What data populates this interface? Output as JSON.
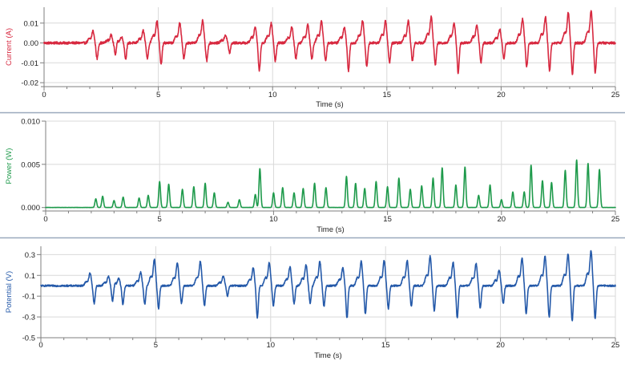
{
  "chart_data": [
    {
      "type": "line",
      "name": "current",
      "ylabel": "Current (A)",
      "xlabel": "Time (s)",
      "color": "#d7283f",
      "xlim": [
        0,
        25
      ],
      "ylim": [
        -0.022,
        0.018
      ],
      "yticks": [
        0.01,
        0.0,
        -0.01,
        -0.02
      ],
      "ytick_labels": [
        "0.01",
        "0.00",
        "-0.01",
        "-0.02"
      ],
      "xticks": [
        0,
        5,
        10,
        15,
        20,
        25
      ],
      "xtick_labels": [
        "0",
        "5",
        "10",
        "15",
        "20",
        "25"
      ],
      "baseline": 0.0,
      "noise": 0.0006,
      "pulse_times": [
        2.2,
        3.0,
        3.45,
        4.4,
        5.0,
        6.0,
        7.0,
        8.0,
        9.3,
        10.0,
        10.9,
        11.6,
        12.2,
        13.2,
        14.0,
        15.0,
        16.0,
        17.0,
        18.0,
        19.0,
        20.0,
        21.0,
        22.0,
        23.0,
        24.0
      ],
      "pulse_pos": [
        0.006,
        0.004,
        0.003,
        0.006,
        0.011,
        0.01,
        0.011,
        0.004,
        0.008,
        0.01,
        0.008,
        0.009,
        0.011,
        0.008,
        0.011,
        0.011,
        0.011,
        0.013,
        0.01,
        0.009,
        0.007,
        0.012,
        0.013,
        0.015,
        0.016
      ],
      "pulse_neg": [
        -0.008,
        -0.006,
        -0.008,
        -0.008,
        -0.011,
        -0.008,
        -0.009,
        -0.005,
        -0.014,
        -0.009,
        -0.008,
        -0.008,
        -0.009,
        -0.014,
        -0.012,
        -0.01,
        -0.009,
        -0.011,
        -0.015,
        -0.01,
        -0.008,
        -0.012,
        -0.014,
        -0.016,
        -0.015
      ]
    },
    {
      "type": "line",
      "name": "power",
      "ylabel": "Power (W)",
      "xlabel": "Time (s)",
      "color": "#1e9a4b",
      "xlim": [
        0,
        25
      ],
      "ylim": [
        -0.0004,
        0.01
      ],
      "yticks": [
        0.01,
        0.005,
        0.0
      ],
      "ytick_labels": [
        "0.010",
        "0.005",
        "0.000"
      ],
      "xticks": [
        0,
        5,
        10,
        15,
        20,
        25
      ],
      "xtick_labels": [
        "0",
        "5",
        "10",
        "15",
        "20",
        "25"
      ],
      "baseline": 0.0,
      "noise": 3e-05,
      "peak_times": [
        2.2,
        2.5,
        3.0,
        3.4,
        4.1,
        4.5,
        5.0,
        5.4,
        6.0,
        6.5,
        7.0,
        7.4,
        8.0,
        8.5,
        9.2,
        9.4,
        10.0,
        10.4,
        10.9,
        11.3,
        11.8,
        12.3,
        13.2,
        13.6,
        14.0,
        14.5,
        15.0,
        15.5,
        16.0,
        16.5,
        17.0,
        17.4,
        18.0,
        18.4,
        19.0,
        19.5,
        20.0,
        20.5,
        21.0,
        21.3,
        21.8,
        22.2,
        22.8,
        23.3,
        23.8,
        24.3
      ],
      "peak_values": [
        0.001,
        0.0013,
        0.0008,
        0.0012,
        0.0011,
        0.0014,
        0.003,
        0.0027,
        0.0021,
        0.0024,
        0.0028,
        0.0017,
        0.0006,
        0.0009,
        0.0015,
        0.0045,
        0.0017,
        0.0023,
        0.0017,
        0.0022,
        0.0028,
        0.0023,
        0.0036,
        0.0028,
        0.0022,
        0.003,
        0.0024,
        0.0034,
        0.0021,
        0.0025,
        0.0034,
        0.0046,
        0.0026,
        0.0047,
        0.0014,
        0.0026,
        0.0009,
        0.0018,
        0.0018,
        0.0049,
        0.0031,
        0.0029,
        0.0043,
        0.0055,
        0.0051,
        0.0044
      ]
    },
    {
      "type": "line",
      "name": "potential",
      "ylabel": "Potential (V)",
      "xlabel": "Time (s)",
      "color": "#2459a9",
      "xlim": [
        0,
        25
      ],
      "ylim": [
        -0.5,
        0.38
      ],
      "yticks": [
        0.3,
        0.1,
        -0.1,
        -0.3,
        -0.5
      ],
      "ytick_labels": [
        "0.3",
        "0.1",
        "-0.1",
        "-0.3",
        "-0.5"
      ],
      "xticks": [
        0,
        5,
        10,
        15,
        20,
        25
      ],
      "xtick_labels": [
        "0",
        "5",
        "10",
        "15",
        "20",
        "25"
      ],
      "baseline": 0.0,
      "noise": 0.008,
      "pulse_times": [
        2.2,
        3.0,
        3.45,
        4.4,
        5.0,
        6.0,
        7.0,
        8.0,
        9.3,
        10.0,
        10.9,
        11.6,
        12.2,
        13.2,
        14.0,
        15.0,
        16.0,
        17.0,
        18.0,
        19.0,
        20.0,
        21.0,
        22.0,
        23.0,
        24.0
      ],
      "pulse_pos": [
        0.12,
        0.09,
        0.07,
        0.13,
        0.25,
        0.22,
        0.23,
        0.09,
        0.17,
        0.22,
        0.18,
        0.2,
        0.23,
        0.17,
        0.23,
        0.24,
        0.24,
        0.28,
        0.22,
        0.21,
        0.15,
        0.26,
        0.28,
        0.3,
        0.33
      ],
      "pulse_neg": [
        -0.17,
        -0.15,
        -0.18,
        -0.18,
        -0.22,
        -0.17,
        -0.19,
        -0.1,
        -0.31,
        -0.19,
        -0.17,
        -0.17,
        -0.2,
        -0.31,
        -0.27,
        -0.22,
        -0.2,
        -0.24,
        -0.31,
        -0.22,
        -0.17,
        -0.27,
        -0.3,
        -0.34,
        -0.32
      ]
    }
  ]
}
